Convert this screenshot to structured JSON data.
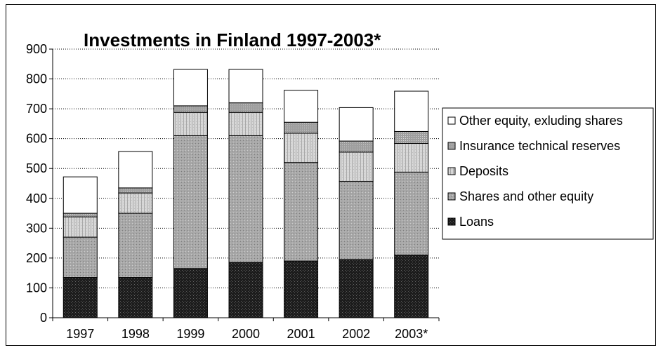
{
  "chart_data": {
    "type": "bar",
    "stacked": true,
    "title": "Investments in Finland 1997-2003*",
    "xlabel": "",
    "ylabel": "",
    "categories": [
      "1997",
      "1998",
      "1999",
      "2000",
      "2001",
      "2002",
      "2003*"
    ],
    "ylim": [
      0,
      900
    ],
    "yticks": [
      0,
      100,
      200,
      300,
      400,
      500,
      600,
      700,
      800,
      900
    ],
    "grid": "horizontal dotted",
    "legend_position": "right",
    "series": [
      {
        "name": "Loans",
        "values": [
          135,
          135,
          165,
          185,
          190,
          195,
          210
        ],
        "color": "#1c1c1c"
      },
      {
        "name": "Shares and other equity",
        "values": [
          135,
          215,
          445,
          425,
          330,
          262,
          278
        ],
        "color": "#a6a6a6"
      },
      {
        "name": "Deposits",
        "values": [
          68,
          68,
          78,
          78,
          98,
          98,
          96
        ],
        "color": "#d0d0d0"
      },
      {
        "name": "Insurance technical reserves",
        "values": [
          12,
          17,
          22,
          32,
          37,
          37,
          40
        ],
        "color": "#9a9a9a"
      },
      {
        "name": "Other equity, exluding shares",
        "values": [
          122,
          122,
          122,
          112,
          107,
          112,
          135
        ],
        "color": "#ffffff"
      }
    ]
  }
}
